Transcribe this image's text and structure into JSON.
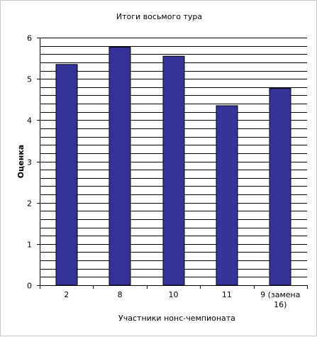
{
  "chart_data": {
    "type": "bar",
    "title": "Итоги восьмого тура",
    "xlabel": "Участники нонс-чемпионата",
    "ylabel": "Оценка",
    "categories": [
      "2",
      "8",
      "10",
      "11",
      "9 (замена 16)"
    ],
    "values": [
      5.35,
      5.77,
      5.55,
      4.35,
      4.77
    ],
    "ylim": [
      0,
      6
    ],
    "yticks": [
      0,
      1,
      2,
      3,
      4,
      5,
      6
    ],
    "grid": true,
    "legend": "none",
    "bar_color": "#333399"
  }
}
